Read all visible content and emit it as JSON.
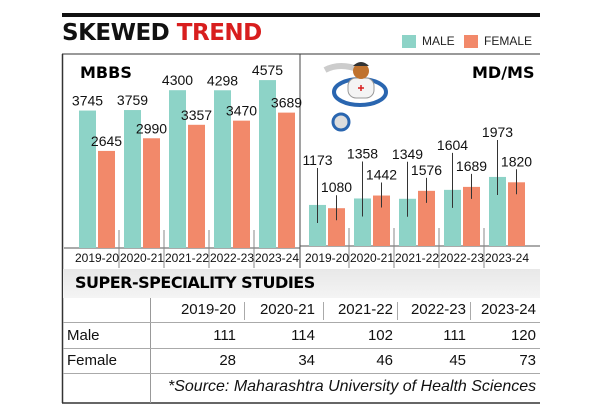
{
  "title": {
    "part1": "SKEWED",
    "part2": "TREND"
  },
  "legend": {
    "male": "MALE",
    "female": "FEMALE"
  },
  "colors": {
    "male": "#8dd3c7",
    "female": "#f2896a",
    "title_accent": "#d81e1e"
  },
  "icon": "doctor-with-stethoscope-icon",
  "chart_data": [
    {
      "type": "bar",
      "title": "MBBS",
      "categories": [
        "2019-20",
        "2020-21",
        "2021-22",
        "2022-23",
        "2023-24"
      ],
      "series": [
        {
          "name": "MALE",
          "values": [
            3745,
            3759,
            4300,
            4298,
            4575
          ]
        },
        {
          "name": "FEMALE",
          "values": [
            2645,
            2990,
            3357,
            3470,
            3689
          ]
        }
      ]
    },
    {
      "type": "bar",
      "title": "MD/MS",
      "categories": [
        "2019-20",
        "2020-21",
        "2021-22",
        "2022-23",
        "2023-24"
      ],
      "series": [
        {
          "name": "MALE",
          "values": [
            1173,
            1358,
            1349,
            1604,
            1973
          ]
        },
        {
          "name": "FEMALE",
          "values": [
            1080,
            1442,
            1576,
            1689,
            1820
          ]
        }
      ]
    }
  ],
  "table": {
    "title": "SUPER-SPECIALITY STUDIES",
    "columns": [
      "2019-20",
      "2020-21",
      "2021-22",
      "2022-23",
      "2023-24"
    ],
    "rows": [
      {
        "label": "Male",
        "values": [
          "111",
          "114",
          "102",
          "111",
          "120"
        ]
      },
      {
        "label": "Female",
        "values": [
          "28",
          "34",
          "46",
          "45",
          "73"
        ]
      }
    ],
    "source": "*Source: Maharashtra University of Health Sciences"
  }
}
